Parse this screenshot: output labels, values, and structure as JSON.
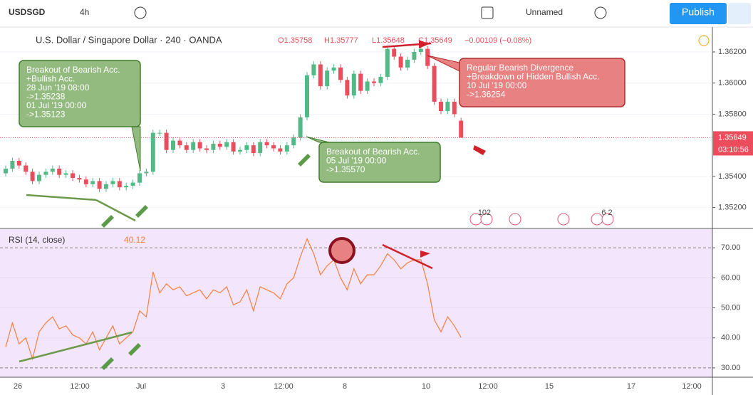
{
  "toolbar": {
    "symbol": "USDSGD",
    "interval": "4h",
    "layout": "Unnamed",
    "publish": "Publish"
  },
  "chart_data": [
    {
      "type": "candlestick",
      "title": "U.S. Dollar / Singapore Dollar · 240 · OANDA",
      "legend": [
        "O1.35758",
        "H1.35777",
        "L1.35648",
        "C1.35649",
        "−0.00109 (−0.08%)"
      ],
      "x_labels": [
        "26",
        "12:00",
        "Jul",
        "3",
        "12:00",
        "8",
        "10",
        "12:00",
        "15",
        "17",
        "12:00"
      ],
      "up_color": "#53b987",
      "down_color": "#eb4d5c",
      "open": [
        1.3542,
        1.3545,
        1.355,
        1.3547,
        1.3543,
        1.3537,
        1.3541,
        1.3543,
        1.3545,
        1.3541,
        1.3542,
        1.3539,
        1.3538,
        1.3535,
        1.3537,
        1.3532,
        1.3535,
        1.3537,
        1.3533,
        1.3534,
        1.3536,
        1.3542,
        1.3543,
        1.3568,
        1.3568,
        1.3557,
        1.3563,
        1.356,
        1.3557,
        1.3562,
        1.3558,
        1.3557,
        1.3561,
        1.3559,
        1.3562,
        1.3556,
        1.3557,
        1.356,
        1.3555,
        1.3562,
        1.356,
        1.3558,
        1.3556,
        1.356,
        1.3565,
        1.3578,
        1.3605,
        1.3612,
        1.3598,
        1.3608,
        1.361,
        1.3602,
        1.3592,
        1.3606,
        1.3595,
        1.3601,
        1.36,
        1.3604,
        1.3622,
        1.3617,
        1.361,
        1.3615,
        1.362,
        1.3622,
        1.3611,
        1.3588,
        1.3582,
        1.3588,
        1.35758
      ],
      "high": [
        1.3547,
        1.3552,
        1.3552,
        1.3549,
        1.3545,
        1.3543,
        1.3545,
        1.3547,
        1.3547,
        1.3544,
        1.3544,
        1.3541,
        1.354,
        1.3539,
        1.3539,
        1.3537,
        1.3539,
        1.3539,
        1.3536,
        1.3538,
        1.3544,
        1.3545,
        1.357,
        1.357,
        1.357,
        1.3565,
        1.3565,
        1.3562,
        1.3564,
        1.3564,
        1.356,
        1.3563,
        1.3563,
        1.3564,
        1.3564,
        1.3559,
        1.3562,
        1.3562,
        1.3564,
        1.3564,
        1.3562,
        1.356,
        1.3562,
        1.3567,
        1.358,
        1.3607,
        1.3614,
        1.3614,
        1.361,
        1.3612,
        1.3612,
        1.3604,
        1.3608,
        1.3608,
        1.3603,
        1.3603,
        1.3606,
        1.3624,
        1.3624,
        1.3619,
        1.3617,
        1.3622,
        1.3624,
        1.3624,
        1.3613,
        1.359,
        1.359,
        1.359,
        1.35777
      ],
      "low": [
        1.354,
        1.3543,
        1.3545,
        1.3541,
        1.3535,
        1.3535,
        1.3539,
        1.3541,
        1.3539,
        1.3539,
        1.3537,
        1.3536,
        1.3533,
        1.3533,
        1.353,
        1.353,
        1.3533,
        1.3531,
        1.3531,
        1.3532,
        1.3534,
        1.354,
        1.3541,
        1.3566,
        1.3555,
        1.3555,
        1.3558,
        1.3555,
        1.3555,
        1.3556,
        1.3555,
        1.3555,
        1.3557,
        1.3557,
        1.3554,
        1.3554,
        1.3555,
        1.3553,
        1.3553,
        1.3558,
        1.3556,
        1.3554,
        1.3554,
        1.3558,
        1.3563,
        1.3576,
        1.3603,
        1.3596,
        1.3596,
        1.3606,
        1.36,
        1.359,
        1.359,
        1.3593,
        1.3593,
        1.3598,
        1.3598,
        1.3602,
        1.3615,
        1.3608,
        1.3608,
        1.3613,
        1.3618,
        1.3609,
        1.3586,
        1.358,
        1.358,
        1.3578,
        1.35648
      ],
      "close": [
        1.3545,
        1.355,
        1.3547,
        1.3543,
        1.3537,
        1.3541,
        1.3543,
        1.3545,
        1.3541,
        1.3542,
        1.3539,
        1.3538,
        1.3535,
        1.3537,
        1.3532,
        1.3535,
        1.3537,
        1.3533,
        1.3534,
        1.3536,
        1.3542,
        1.3543,
        1.3568,
        1.3568,
        1.3557,
        1.3563,
        1.356,
        1.3557,
        1.3562,
        1.3558,
        1.3557,
        1.3561,
        1.3559,
        1.3562,
        1.3556,
        1.3557,
        1.356,
        1.3555,
        1.3562,
        1.356,
        1.3558,
        1.3556,
        1.356,
        1.3565,
        1.3578,
        1.3605,
        1.3612,
        1.3598,
        1.3608,
        1.361,
        1.3602,
        1.3592,
        1.3606,
        1.3595,
        1.3601,
        1.36,
        1.3604,
        1.3622,
        1.3617,
        1.361,
        1.3615,
        1.362,
        1.3622,
        1.3611,
        1.3588,
        1.3582,
        1.3588,
        1.358,
        1.35649
      ],
      "ylim": [
        1.3507,
        1.3636
      ],
      "yticks": [
        {
          "value": 1.362,
          "label": "1.36200"
        },
        {
          "value": 1.36,
          "label": "1.36000"
        },
        {
          "value": 1.358,
          "label": "1.35800"
        },
        {
          "value": 1.354,
          "label": "1.35400"
        },
        {
          "value": 1.352,
          "label": "1.35200"
        }
      ],
      "countdown": "03:10:56",
      "events": [
        "102",
        "6 2"
      ],
      "annotations": [
        {
          "lines": [
            "Breakout of Bearish Acc.",
            "+Bullish Acc.",
            "28 Jun '19 08:00",
            "->1.35238",
            "01 Jul '19 00:00",
            "->1.35123"
          ],
          "color": "#93bb80"
        },
        {
          "lines": [
            "Breakout of Bearish Acc.",
            "05 Jul '19 00:00",
            "->1.35570"
          ],
          "color": "#93bb80"
        },
        {
          "lines": [
            "Regular Bearish Divergence",
            "+Breakdown of Hidden Bullish Acc.",
            "10 Jul '19 00:00",
            "->1.36254"
          ],
          "color": "#e88282"
        }
      ]
    },
    {
      "type": "line",
      "title": "RSI (14, close)",
      "color": "#f57f3f",
      "values": [
        37,
        45,
        38,
        40,
        33,
        42,
        45,
        47,
        43,
        44,
        41,
        40,
        38,
        42,
        36,
        40,
        44,
        38,
        40,
        42,
        49,
        47,
        62,
        55,
        58,
        56,
        57,
        54,
        55,
        56,
        53,
        56,
        55,
        57,
        51,
        52,
        56,
        49,
        57,
        56,
        55,
        53,
        58,
        60,
        67,
        73,
        68,
        61,
        64,
        66,
        60,
        56,
        63,
        58,
        61,
        61,
        64,
        68,
        66,
        63,
        65,
        66,
        66,
        58,
        46,
        42,
        47,
        44,
        40.12
      ],
      "ylim": [
        26.9,
        76.2
      ],
      "yticks": [
        {
          "value": 70,
          "label": "70.00"
        },
        {
          "value": 60,
          "label": "60.00"
        },
        {
          "value": 50,
          "label": "50.00"
        },
        {
          "value": 40,
          "label": "40.00"
        },
        {
          "value": 30,
          "label": "30.00"
        }
      ]
    }
  ]
}
